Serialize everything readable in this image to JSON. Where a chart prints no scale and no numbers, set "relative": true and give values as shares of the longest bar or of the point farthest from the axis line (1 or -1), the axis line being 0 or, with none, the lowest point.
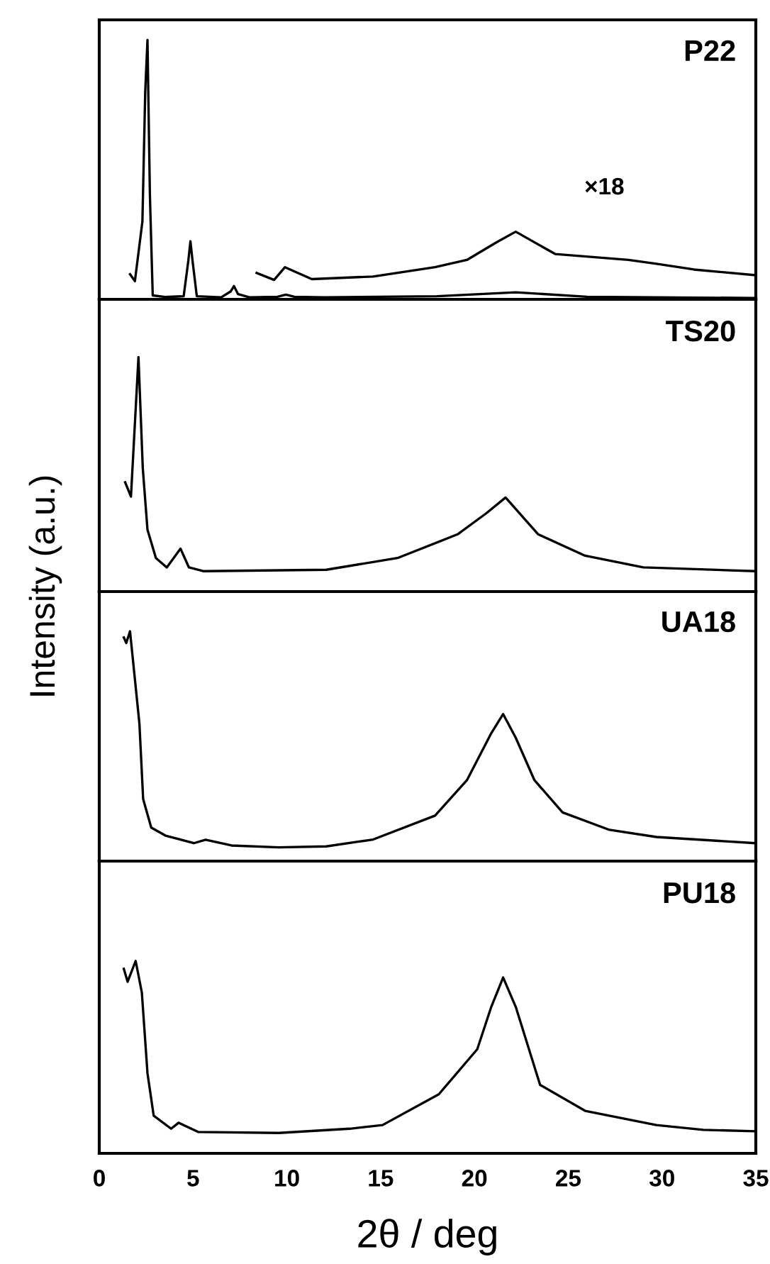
{
  "chart_data": [
    {
      "type": "line",
      "title": "P22",
      "relative": true,
      "xlim": [
        0,
        35
      ],
      "xticks": [
        0,
        5,
        10,
        15,
        20,
        25,
        30,
        35
      ],
      "tick_labels": false,
      "ylabel": "Intensity (a.u.)",
      "series": [
        {
          "color": "#000000",
          "x": [
            1.64,
            1.9,
            2.3,
            2.45,
            2.57,
            2.7,
            2.85,
            3.5,
            4.5,
            4.75,
            4.86,
            4.97,
            5.2,
            6.5,
            7.0,
            7.18,
            7.4,
            8.0,
            9.5,
            9.95,
            10.4,
            12,
            18,
            22.2,
            26,
            35
          ],
          "values": [
            0.097,
            0.07,
            0.3,
            0.8,
            1.0,
            0.4,
            0.015,
            0.009,
            0.012,
            0.15,
            0.224,
            0.15,
            0.012,
            0.008,
            0.03,
            0.051,
            0.02,
            0.008,
            0.01,
            0.018,
            0.01,
            0.008,
            0.012,
            0.027,
            0.01,
            0.005
          ]
        },
        {
          "name": "×18",
          "color": "#000000",
          "x": [
            8.39,
            9.32,
            9.9,
            11.33,
            14.6,
            17.9,
            19.6,
            21.15,
            22.2,
            24.3,
            28.2,
            29.7,
            31.7,
            35
          ],
          "values": [
            0.102,
            0.075,
            0.124,
            0.078,
            0.088,
            0.124,
            0.152,
            0.219,
            0.261,
            0.175,
            0.152,
            0.137,
            0.115,
            0.093
          ]
        }
      ]
    },
    {
      "type": "line",
      "title": "TS20",
      "relative": true,
      "xlim": [
        0,
        35
      ],
      "xticks": [
        0,
        5,
        10,
        15,
        20,
        25,
        30,
        35
      ],
      "tick_labels": false,
      "series": [
        {
          "color": "#000000",
          "x": [
            1.38,
            1.69,
            2.09,
            2.32,
            2.57,
            3.02,
            3.6,
            4.33,
            4.78,
            5.54,
            12.1,
            15.9,
            19.1,
            20.65,
            21.66,
            23.4,
            25.9,
            29.0,
            35
          ],
          "values": [
            0.466,
            0.405,
            1.0,
            0.526,
            0.264,
            0.143,
            0.103,
            0.183,
            0.103,
            0.087,
            0.093,
            0.143,
            0.244,
            0.335,
            0.401,
            0.244,
            0.153,
            0.103,
            0.087
          ]
        }
      ]
    },
    {
      "type": "line",
      "title": "UA18",
      "relative": true,
      "xlim": [
        0,
        35
      ],
      "xticks": [
        0,
        5,
        10,
        15,
        20,
        25,
        30,
        35
      ],
      "tick_labels": false,
      "series": [
        {
          "color": "#000000",
          "x": [
            1.31,
            1.44,
            1.64,
            2.14,
            2.34,
            2.77,
            3.53,
            5.04,
            5.67,
            7.05,
            9.57,
            12.1,
            14.6,
            17.9,
            19.6,
            20.9,
            21.53,
            22.2,
            23.2,
            24.7,
            27.2,
            29.7,
            35
          ],
          "values": [
            0.973,
            0.949,
            1.0,
            0.599,
            0.27,
            0.146,
            0.111,
            0.078,
            0.093,
            0.068,
            0.06,
            0.064,
            0.094,
            0.198,
            0.352,
            0.557,
            0.64,
            0.537,
            0.352,
            0.212,
            0.136,
            0.105,
            0.078
          ]
        }
      ]
    },
    {
      "type": "line",
      "title": "PU18",
      "relative": true,
      "xlim": [
        0,
        35
      ],
      "xticks": [
        0,
        5,
        10,
        15,
        20,
        25,
        30,
        35
      ],
      "tick_labels": "x",
      "xlabel": "2θ / deg",
      "series": [
        {
          "color": "#000000",
          "x": [
            1.31,
            1.51,
            1.94,
            2.27,
            2.57,
            2.9,
            3.83,
            4.23,
            5.29,
            9.57,
            13.35,
            15.1,
            18.1,
            20.15,
            20.9,
            21.53,
            22.2,
            23.5,
            25.9,
            29.7,
            32.2,
            35
          ],
          "values": [
            0.959,
            0.892,
            1.0,
            0.836,
            0.417,
            0.196,
            0.128,
            0.159,
            0.111,
            0.106,
            0.128,
            0.147,
            0.307,
            0.541,
            0.762,
            0.914,
            0.762,
            0.356,
            0.221,
            0.147,
            0.122,
            0.115
          ]
        }
      ]
    }
  ]
}
